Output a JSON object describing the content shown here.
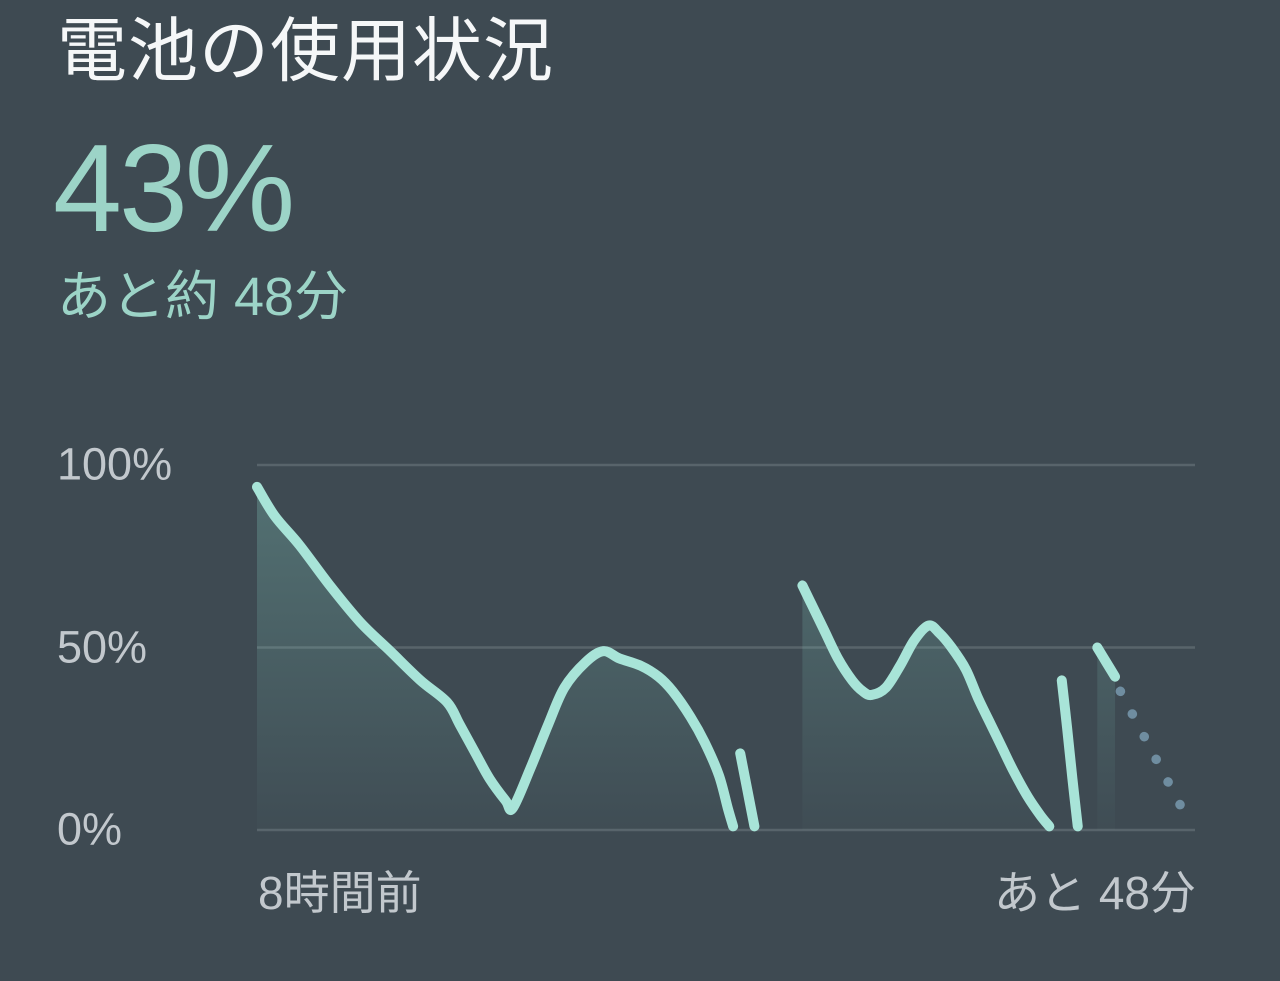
{
  "header": {
    "title": "電池の使用状況",
    "battery_percent": "43%",
    "time_remaining": "あと約 48分"
  },
  "colors": {
    "background": "#3E4A52",
    "title_text": "#F5F7F8",
    "accent_text": "#9CD4C7",
    "axis_text": "#C2C8CD",
    "grid_line": "#58646B",
    "line": "#A8E4D8",
    "line_fill_top": "rgba(134,210,196,0.30)",
    "line_fill_bottom": "rgba(134,210,196,0.02)",
    "projection_dots": "#6F8DA0"
  },
  "chart_data": {
    "type": "area",
    "title": "",
    "xlabel": "",
    "ylabel": "",
    "grid": true,
    "ylim": [
      0,
      100
    ],
    "xlim_minutes": [
      -480,
      48
    ],
    "y_ticks": [
      "100%",
      "50%",
      "0%"
    ],
    "y_tick_values": [
      100,
      50,
      0
    ],
    "x_start_label": "8時間前",
    "x_end_label": "あと 48分",
    "series": [
      {
        "name": "battery-history-1",
        "style": "solid",
        "fill": true,
        "points": [
          [
            -480,
            94
          ],
          [
            -470,
            86
          ],
          [
            -456,
            78
          ],
          [
            -439,
            67
          ],
          [
            -422,
            57
          ],
          [
            -405,
            49
          ],
          [
            -388,
            41
          ],
          [
            -373,
            35
          ],
          [
            -366,
            29
          ],
          [
            -357,
            21
          ],
          [
            -349,
            14
          ],
          [
            -340,
            8
          ],
          [
            -336,
            6
          ],
          [
            -326,
            17
          ],
          [
            -316,
            29
          ],
          [
            -307,
            39
          ],
          [
            -295,
            46
          ],
          [
            -285,
            49
          ],
          [
            -276,
            47
          ],
          [
            -264,
            45
          ],
          [
            -254,
            42
          ],
          [
            -246,
            38
          ],
          [
            -236,
            31
          ],
          [
            -228,
            24
          ],
          [
            -220,
            15
          ],
          [
            -215,
            6
          ],
          [
            -212,
            1
          ]
        ]
      },
      {
        "name": "gap-mark-1",
        "style": "solid",
        "fill": false,
        "points": [
          [
            -208,
            21
          ],
          [
            -204,
            11
          ],
          [
            -200,
            1
          ]
        ]
      },
      {
        "name": "battery-history-2",
        "style": "solid",
        "fill": true,
        "points": [
          [
            -173,
            67
          ],
          [
            -168,
            62
          ],
          [
            -161,
            55
          ],
          [
            -153,
            47
          ],
          [
            -145,
            41
          ],
          [
            -139,
            38
          ],
          [
            -134,
            37
          ],
          [
            -126,
            39
          ],
          [
            -118,
            45
          ],
          [
            -110,
            52
          ],
          [
            -102,
            56
          ],
          [
            -96,
            54
          ],
          [
            -89,
            50
          ],
          [
            -81,
            44
          ],
          [
            -74,
            36
          ],
          [
            -67,
            29
          ],
          [
            -61,
            23
          ],
          [
            -54,
            16
          ],
          [
            -46,
            9
          ],
          [
            -39,
            4
          ],
          [
            -34,
            1
          ]
        ]
      },
      {
        "name": "gap-mark-2",
        "style": "solid",
        "fill": false,
        "points": [
          [
            -27,
            41
          ],
          [
            -24,
            28
          ],
          [
            -21,
            14
          ],
          [
            -18,
            1
          ]
        ]
      },
      {
        "name": "battery-current",
        "style": "solid",
        "fill": true,
        "points": [
          [
            -7,
            50
          ],
          [
            -2,
            46
          ],
          [
            3,
            42
          ]
        ]
      },
      {
        "name": "battery-projection",
        "style": "dotted",
        "fill": false,
        "points": [
          [
            6,
            38
          ],
          [
            46,
            1
          ]
        ]
      }
    ]
  }
}
